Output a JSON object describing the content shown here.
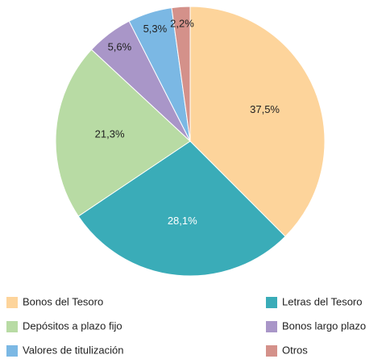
{
  "chart_data": {
    "type": "pie",
    "categories": [
      "Bonos del Tesoro",
      "Letras del Tesoro",
      "Depósitos a plazo fijo",
      "Bonos largo plazo",
      "Valores de titulización",
      "Otros"
    ],
    "values": [
      37.5,
      28.1,
      21.3,
      5.6,
      5.3,
      2.2
    ],
    "value_labels": [
      "37,5%",
      "28,1%",
      "21,3%",
      "5,6%",
      "5,3%",
      "2,2%"
    ],
    "colors": [
      "#fdd49b",
      "#3aacb8",
      "#b8dba4",
      "#a996c8",
      "#7bb8e4",
      "#d4918a"
    ]
  }
}
